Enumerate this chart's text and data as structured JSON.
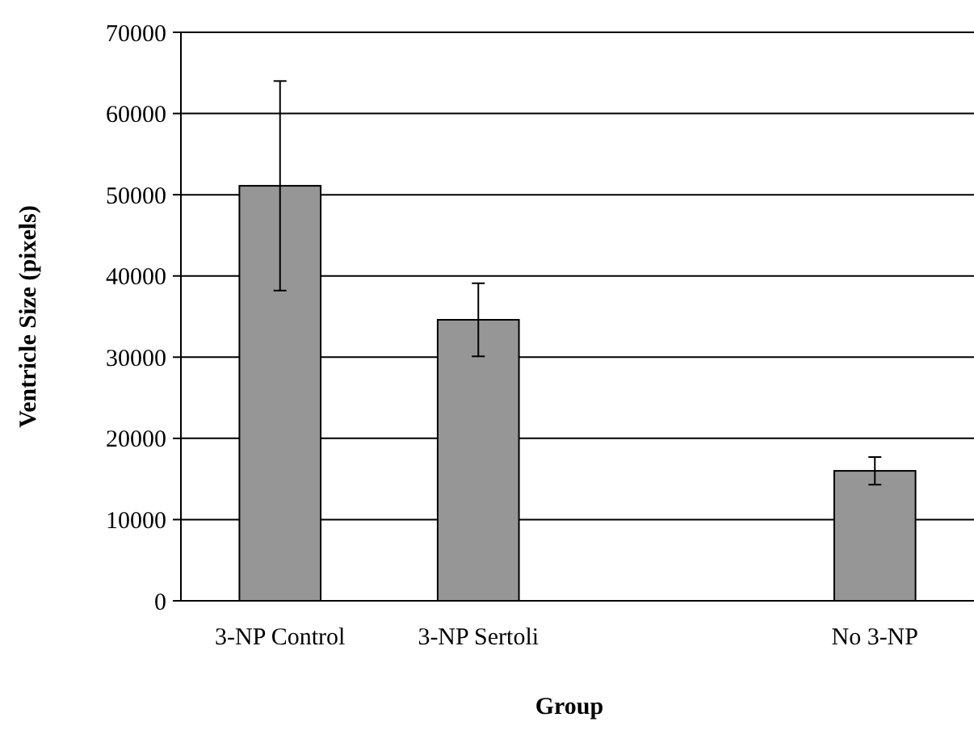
{
  "chart_data": {
    "type": "bar",
    "xlabel": "Group",
    "ylabel": "Ventricle Size (pixels)",
    "categories": [
      "3-NP Control",
      "3-NP Sertoli",
      null,
      "No 3-NP"
    ],
    "values": [
      51100,
      34600,
      null,
      16000
    ],
    "errors": [
      12900,
      4500,
      null,
      1700
    ],
    "color": "#969696",
    "ylim": [
      0,
      70000
    ],
    "yticks": [
      0,
      10000,
      20000,
      30000,
      40000,
      50000,
      60000,
      70000
    ],
    "grid": "y"
  }
}
